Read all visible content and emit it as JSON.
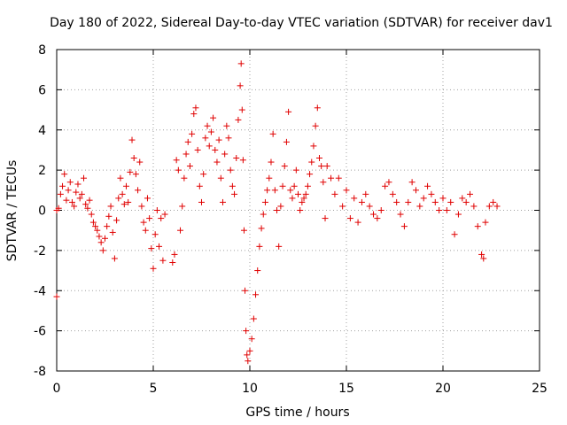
{
  "chart_data": {
    "type": "scatter",
    "title": "Day 180 of 2022, Sidereal Day-to-day VTEC variation (SDTVAR) for receiver dav1",
    "xlabel": "GPS time / hours",
    "ylabel": "SDTVAR / TECUs",
    "xlim": [
      0,
      25
    ],
    "ylim": [
      -8,
      8
    ],
    "xticks": [
      "0",
      "5",
      "10",
      "15",
      "20",
      "25"
    ],
    "yticks": [
      "-8",
      "-6",
      "-4",
      "-2",
      "0",
      "2",
      "4",
      "6",
      "8"
    ],
    "grid": true,
    "marker": "+",
    "color": "#e00000",
    "series": [
      {
        "name": "dav1",
        "points": [
          [
            0.0,
            0.0
          ],
          [
            0.0,
            -4.3
          ],
          [
            0.1,
            0.1
          ],
          [
            0.2,
            0.8
          ],
          [
            0.3,
            1.2
          ],
          [
            0.4,
            1.8
          ],
          [
            0.5,
            0.5
          ],
          [
            0.6,
            1.0
          ],
          [
            0.7,
            1.4
          ],
          [
            0.8,
            0.4
          ],
          [
            0.9,
            0.2
          ],
          [
            1.0,
            0.9
          ],
          [
            1.1,
            1.3
          ],
          [
            1.2,
            0.6
          ],
          [
            1.3,
            0.8
          ],
          [
            1.4,
            1.6
          ],
          [
            1.5,
            0.3
          ],
          [
            1.6,
            0.1
          ],
          [
            1.7,
            0.5
          ],
          [
            1.8,
            -0.2
          ],
          [
            1.9,
            -0.6
          ],
          [
            2.0,
            -0.8
          ],
          [
            2.1,
            -1.0
          ],
          [
            2.2,
            -1.3
          ],
          [
            2.3,
            -1.6
          ],
          [
            2.4,
            -2.0
          ],
          [
            2.5,
            -1.4
          ],
          [
            2.6,
            -0.8
          ],
          [
            2.7,
            -0.3
          ],
          [
            2.8,
            0.2
          ],
          [
            2.9,
            -1.1
          ],
          [
            3.0,
            -2.4
          ],
          [
            3.1,
            -0.5
          ],
          [
            3.2,
            0.6
          ],
          [
            3.3,
            1.6
          ],
          [
            3.4,
            0.8
          ],
          [
            3.5,
            0.3
          ],
          [
            3.6,
            1.2
          ],
          [
            3.7,
            0.4
          ],
          [
            3.8,
            1.9
          ],
          [
            3.9,
            3.5
          ],
          [
            4.0,
            2.6
          ],
          [
            4.1,
            1.8
          ],
          [
            4.2,
            1.0
          ],
          [
            4.3,
            2.4
          ],
          [
            4.4,
            0.2
          ],
          [
            4.5,
            -0.6
          ],
          [
            4.6,
            -1.0
          ],
          [
            4.7,
            0.6
          ],
          [
            4.8,
            -0.4
          ],
          [
            4.9,
            -1.9
          ],
          [
            5.0,
            -2.9
          ],
          [
            5.1,
            -1.2
          ],
          [
            5.2,
            0.0
          ],
          [
            5.3,
            -1.8
          ],
          [
            5.4,
            -0.4
          ],
          [
            5.5,
            -2.5
          ],
          [
            5.6,
            -0.2
          ],
          [
            6.0,
            -2.6
          ],
          [
            6.1,
            -2.2
          ],
          [
            6.2,
            2.5
          ],
          [
            6.3,
            2.0
          ],
          [
            6.4,
            -1.0
          ],
          [
            6.5,
            0.2
          ],
          [
            6.6,
            1.6
          ],
          [
            6.7,
            2.8
          ],
          [
            6.8,
            3.4
          ],
          [
            6.9,
            2.2
          ],
          [
            7.0,
            3.8
          ],
          [
            7.1,
            4.8
          ],
          [
            7.2,
            5.1
          ],
          [
            7.3,
            3.0
          ],
          [
            7.4,
            1.2
          ],
          [
            7.5,
            0.4
          ],
          [
            7.6,
            1.8
          ],
          [
            7.7,
            3.6
          ],
          [
            7.8,
            4.2
          ],
          [
            7.9,
            3.2
          ],
          [
            8.0,
            3.9
          ],
          [
            8.1,
            4.6
          ],
          [
            8.2,
            3.0
          ],
          [
            8.3,
            2.4
          ],
          [
            8.4,
            3.5
          ],
          [
            8.5,
            1.6
          ],
          [
            8.6,
            0.4
          ],
          [
            8.7,
            2.8
          ],
          [
            8.8,
            4.2
          ],
          [
            8.9,
            3.6
          ],
          [
            9.0,
            2.0
          ],
          [
            9.1,
            1.2
          ],
          [
            9.2,
            0.8
          ],
          [
            9.3,
            2.6
          ],
          [
            9.4,
            4.5
          ],
          [
            9.5,
            6.2
          ],
          [
            9.55,
            7.3
          ],
          [
            9.6,
            5.0
          ],
          [
            9.65,
            2.5
          ],
          [
            9.7,
            -1.0
          ],
          [
            9.75,
            -4.0
          ],
          [
            9.8,
            -6.0
          ],
          [
            9.85,
            -7.2
          ],
          [
            9.9,
            -7.5
          ],
          [
            10.0,
            -7.0
          ],
          [
            10.1,
            -6.4
          ],
          [
            10.2,
            -5.4
          ],
          [
            10.3,
            -4.2
          ],
          [
            10.4,
            -3.0
          ],
          [
            10.5,
            -1.8
          ],
          [
            10.6,
            -0.9
          ],
          [
            10.7,
            -0.2
          ],
          [
            10.8,
            0.4
          ],
          [
            10.9,
            1.0
          ],
          [
            11.0,
            1.6
          ],
          [
            11.1,
            2.4
          ],
          [
            11.2,
            3.8
          ],
          [
            11.3,
            1.0
          ],
          [
            11.4,
            0.0
          ],
          [
            11.5,
            -1.8
          ],
          [
            11.6,
            0.2
          ],
          [
            11.7,
            1.2
          ],
          [
            11.8,
            2.2
          ],
          [
            11.9,
            3.4
          ],
          [
            12.0,
            4.9
          ],
          [
            12.1,
            1.0
          ],
          [
            12.2,
            0.6
          ],
          [
            12.3,
            1.2
          ],
          [
            12.4,
            2.0
          ],
          [
            12.5,
            0.8
          ],
          [
            12.6,
            0.0
          ],
          [
            12.7,
            0.4
          ],
          [
            12.8,
            0.6
          ],
          [
            12.9,
            0.8
          ],
          [
            13.0,
            1.2
          ],
          [
            13.1,
            1.8
          ],
          [
            13.2,
            2.4
          ],
          [
            13.3,
            3.2
          ],
          [
            13.4,
            4.2
          ],
          [
            13.5,
            5.1
          ],
          [
            13.6,
            2.6
          ],
          [
            13.7,
            2.2
          ],
          [
            13.8,
            1.4
          ],
          [
            13.9,
            -0.4
          ],
          [
            14.0,
            2.2
          ],
          [
            14.2,
            1.6
          ],
          [
            14.4,
            0.8
          ],
          [
            14.6,
            1.6
          ],
          [
            14.8,
            0.2
          ],
          [
            15.0,
            1.0
          ],
          [
            15.2,
            -0.4
          ],
          [
            15.4,
            0.6
          ],
          [
            15.6,
            -0.6
          ],
          [
            15.8,
            0.4
          ],
          [
            16.0,
            0.8
          ],
          [
            16.2,
            0.2
          ],
          [
            16.4,
            -0.2
          ],
          [
            16.6,
            -0.4
          ],
          [
            16.8,
            0.0
          ],
          [
            17.0,
            1.2
          ],
          [
            17.2,
            1.4
          ],
          [
            17.4,
            0.8
          ],
          [
            17.6,
            0.4
          ],
          [
            17.8,
            -0.2
          ],
          [
            18.0,
            -0.8
          ],
          [
            18.2,
            0.4
          ],
          [
            18.4,
            1.4
          ],
          [
            18.6,
            1.0
          ],
          [
            18.8,
            0.2
          ],
          [
            19.0,
            0.6
          ],
          [
            19.2,
            1.2
          ],
          [
            19.4,
            0.8
          ],
          [
            19.6,
            0.4
          ],
          [
            19.8,
            0.0
          ],
          [
            20.0,
            0.6
          ],
          [
            20.2,
            0.0
          ],
          [
            20.4,
            0.4
          ],
          [
            20.6,
            -1.2
          ],
          [
            20.8,
            -0.2
          ],
          [
            21.0,
            0.6
          ],
          [
            21.2,
            0.4
          ],
          [
            21.4,
            0.8
          ],
          [
            21.6,
            0.2
          ],
          [
            21.8,
            -0.8
          ],
          [
            22.0,
            -2.2
          ],
          [
            22.1,
            -2.4
          ],
          [
            22.2,
            -0.6
          ],
          [
            22.4,
            0.2
          ],
          [
            22.6,
            0.4
          ],
          [
            22.8,
            0.2
          ]
        ]
      }
    ]
  }
}
